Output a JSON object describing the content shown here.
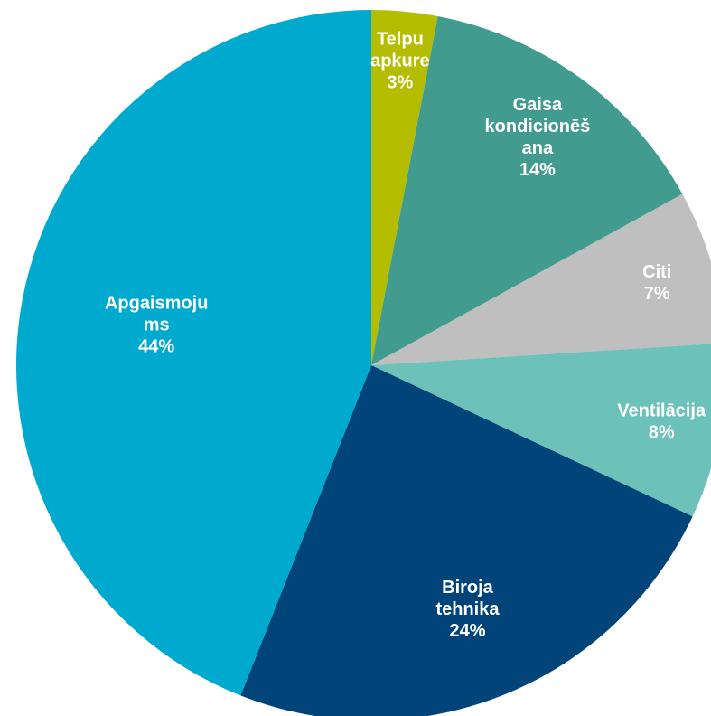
{
  "chart_data": {
    "type": "pie",
    "categories": [
      "Telpu\napkure",
      "Gaisa\nkondicionēš\nana",
      "Citi",
      "Ventilācija",
      "Biroja\ntehnika",
      "Apgaismoju\nms"
    ],
    "values": [
      3,
      14,
      7,
      8,
      24,
      44
    ],
    "value_labels": [
      "3%",
      "14%",
      "7%",
      "8%",
      "24%",
      "44%"
    ],
    "colors": [
      "#b5bd00",
      "#429b8f",
      "#bfbfbf",
      "#6cc1b8",
      "#004479",
      "#00a9ce"
    ]
  }
}
